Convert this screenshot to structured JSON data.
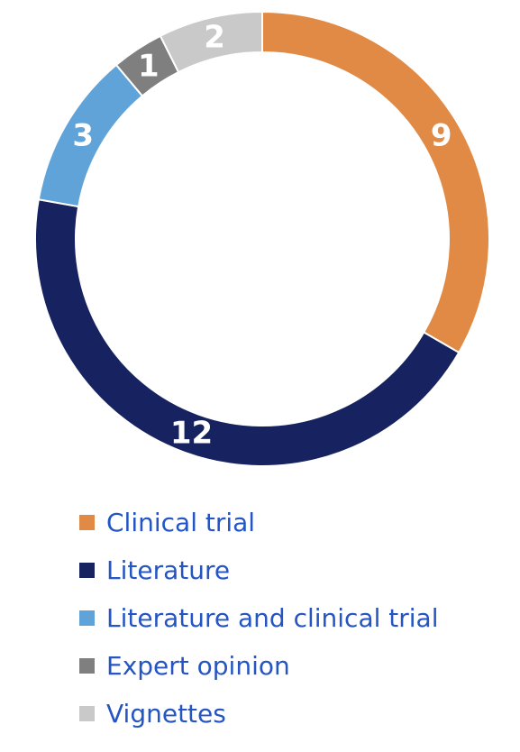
{
  "chart_data": {
    "type": "pie",
    "variant": "donut",
    "categories": [
      "Clinical trial",
      "Literature",
      "Literature and clinical trial",
      "Expert opinion",
      "Vignettes"
    ],
    "values": [
      9,
      12,
      3,
      1,
      2
    ],
    "colors": [
      "#E08A45",
      "#172360",
      "#5FA3D9",
      "#7F7F7F",
      "#C9C9C9"
    ],
    "title": "",
    "legend_position": "bottom-left",
    "legend_text_color": "#2455C3",
    "data_labels": [
      "9",
      "12",
      "3",
      "1",
      "2"
    ]
  }
}
